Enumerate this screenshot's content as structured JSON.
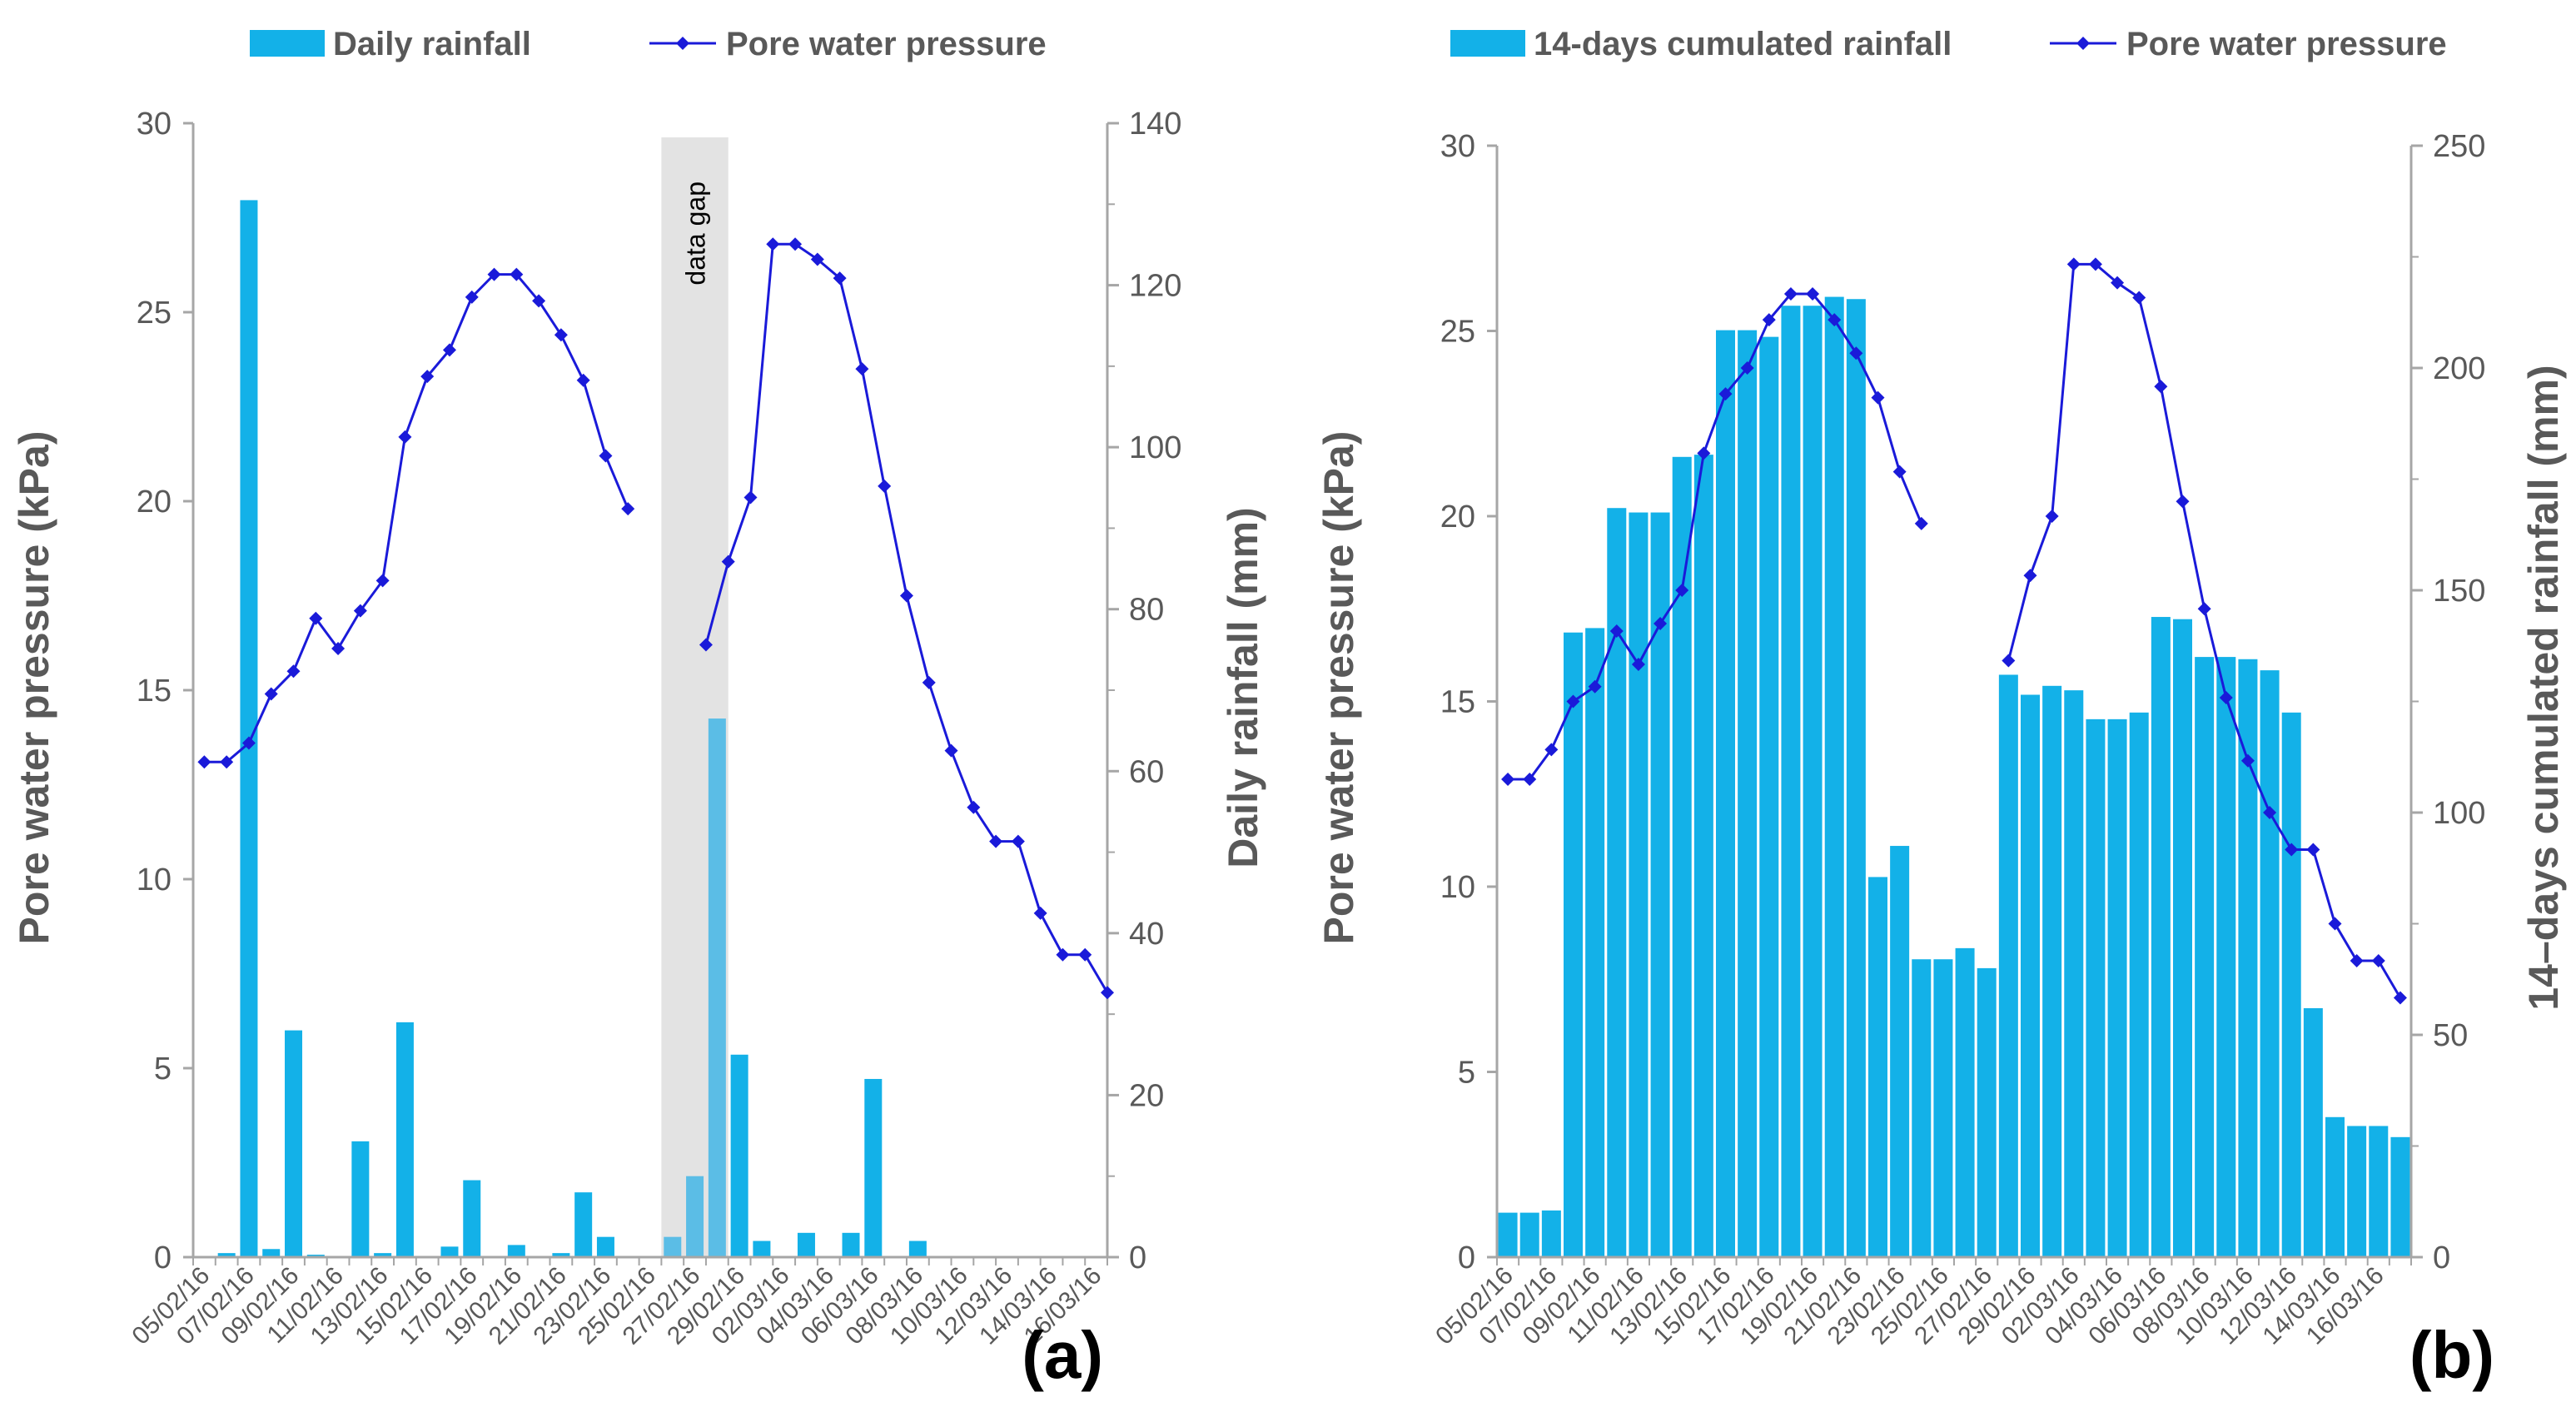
{
  "chart_data": [
    {
      "type": "bar+line",
      "panel_label": "(a)",
      "legend": {
        "bar": "Daily rainfall",
        "line": "Pore water pressure"
      },
      "ylabel_left": "Pore water pressure (kPa)",
      "ylabel_right": "Daily rainfall (mm)",
      "ylim_left": [
        0,
        30
      ],
      "ylim_right": [
        0,
        140
      ],
      "yticks_left": [
        0,
        5,
        10,
        15,
        20,
        25,
        30
      ],
      "yticks_right": [
        0,
        20,
        40,
        60,
        80,
        100,
        120,
        140
      ],
      "xticks": [
        "05/02/16",
        "07/02/16",
        "09/02/16",
        "11/02/16",
        "13/02/16",
        "15/02/16",
        "17/02/16",
        "19/02/16",
        "21/02/16",
        "23/02/16",
        "25/02/16",
        "27/02/16",
        "29/02/16",
        "02/03/16",
        "04/03/16",
        "06/03/16",
        "08/03/16",
        "10/03/16",
        "12/03/16",
        "14/03/16",
        "16/03/16"
      ],
      "gap": {
        "label": "data gap",
        "from_day": 20.5,
        "to_day": 23.5
      },
      "bars": [
        {
          "day": 1,
          "value": 0.5
        },
        {
          "day": 2,
          "value": 130.5
        },
        {
          "day": 3,
          "value": 1
        },
        {
          "day": 4,
          "value": 28
        },
        {
          "day": 5,
          "value": 0.3
        },
        {
          "day": 7,
          "value": 14.3
        },
        {
          "day": 8,
          "value": 0.5
        },
        {
          "day": 9,
          "value": 29
        },
        {
          "day": 11,
          "value": 1.3
        },
        {
          "day": 12,
          "value": 9.5
        },
        {
          "day": 14,
          "value": 1.5
        },
        {
          "day": 16,
          "value": 0.5
        },
        {
          "day": 17,
          "value": 8
        },
        {
          "day": 18,
          "value": 2.5
        },
        {
          "day": 21,
          "value": 2.5
        },
        {
          "day": 22,
          "value": 10
        },
        {
          "day": 23,
          "value": 66.5
        },
        {
          "day": 24,
          "value": 25
        },
        {
          "day": 25,
          "value": 2
        },
        {
          "day": 27,
          "value": 3
        },
        {
          "day": 29,
          "value": 3
        },
        {
          "day": 30,
          "value": 22
        },
        {
          "day": 32,
          "value": 2
        }
      ],
      "line_segments": [
        [
          {
            "day": 0,
            "y": 13.1
          },
          {
            "day": 1,
            "y": 13.1
          },
          {
            "day": 2,
            "y": 13.6
          },
          {
            "day": 3,
            "y": 14.9
          },
          {
            "day": 4,
            "y": 15.5
          },
          {
            "day": 5,
            "y": 16.9
          },
          {
            "day": 6,
            "y": 16.1
          },
          {
            "day": 7,
            "y": 17.1
          },
          {
            "day": 8,
            "y": 17.9
          },
          {
            "day": 9,
            "y": 21.7
          },
          {
            "day": 10,
            "y": 23.3
          },
          {
            "day": 11,
            "y": 24.0
          },
          {
            "day": 12,
            "y": 25.4
          },
          {
            "day": 13,
            "y": 26.0
          },
          {
            "day": 14,
            "y": 26.0
          },
          {
            "day": 15,
            "y": 25.3
          },
          {
            "day": 16,
            "y": 24.4
          },
          {
            "day": 17,
            "y": 23.2
          },
          {
            "day": 18,
            "y": 21.2
          },
          {
            "day": 19,
            "y": 19.8
          }
        ],
        [
          {
            "day": 22.5,
            "y": 16.2
          },
          {
            "day": 23.5,
            "y": 18.4
          },
          {
            "day": 24.5,
            "y": 20.1
          },
          {
            "day": 25.5,
            "y": 26.8
          },
          {
            "day": 26.5,
            "y": 26.8
          },
          {
            "day": 27.5,
            "y": 26.4
          },
          {
            "day": 28.5,
            "y": 25.9
          },
          {
            "day": 29.5,
            "y": 23.5
          },
          {
            "day": 30.5,
            "y": 20.4
          },
          {
            "day": 31.5,
            "y": 17.5
          },
          {
            "day": 32.5,
            "y": 15.2
          },
          {
            "day": 33.5,
            "y": 13.4
          },
          {
            "day": 34.5,
            "y": 11.9
          },
          {
            "day": 35.5,
            "y": 11.0
          },
          {
            "day": 36.5,
            "y": 11.0
          },
          {
            "day": 37.5,
            "y": 9.1
          },
          {
            "day": 38.5,
            "y": 8.0
          },
          {
            "day": 39.5,
            "y": 8.0
          },
          {
            "day": 40.5,
            "y": 7.0
          }
        ]
      ]
    },
    {
      "type": "bar+line",
      "panel_label": "(b)",
      "legend": {
        "bar": "14-days cumulated rainfall",
        "line": "Pore water pressure"
      },
      "ylabel_left": "Pore water pressure (kPa)",
      "ylabel_right": "14–days cumulated rainfall (mm)",
      "ylim_left": [
        0,
        30
      ],
      "ylim_right": [
        0,
        250
      ],
      "yticks_left": [
        0,
        5,
        10,
        15,
        20,
        25,
        30
      ],
      "yticks_right": [
        0,
        50,
        100,
        150,
        200,
        250
      ],
      "xticks": [
        "05/02/16",
        "07/02/16",
        "09/02/16",
        "11/02/16",
        "13/02/16",
        "15/02/16",
        "17/02/16",
        "19/02/16",
        "21/02/16",
        "23/02/16",
        "25/02/16",
        "27/02/16",
        "29/02/16",
        "02/03/16",
        "04/03/16",
        "06/03/16",
        "08/03/16",
        "10/03/16",
        "12/03/16",
        "14/03/16",
        "16/03/16"
      ],
      "bars": [
        {
          "day": 0,
          "value": 10
        },
        {
          "day": 1,
          "value": 10
        },
        {
          "day": 2,
          "value": 10.5
        },
        {
          "day": 3,
          "value": 140.5
        },
        {
          "day": 4,
          "value": 141.5
        },
        {
          "day": 5,
          "value": 168.5
        },
        {
          "day": 6,
          "value": 167.5
        },
        {
          "day": 7,
          "value": 167.5
        },
        {
          "day": 8,
          "value": 180
        },
        {
          "day": 9,
          "value": 180.5
        },
        {
          "day": 10,
          "value": 208.5
        },
        {
          "day": 11,
          "value": 208.5
        },
        {
          "day": 12,
          "value": 207
        },
        {
          "day": 13,
          "value": 214
        },
        {
          "day": 14,
          "value": 214
        },
        {
          "day": 15,
          "value": 216
        },
        {
          "day": 16,
          "value": 215.5
        },
        {
          "day": 17,
          "value": 85.5
        },
        {
          "day": 18,
          "value": 92.5
        },
        {
          "day": 19,
          "value": 67
        },
        {
          "day": 20,
          "value": 67
        },
        {
          "day": 21,
          "value": 69.5
        },
        {
          "day": 22,
          "value": 65
        },
        {
          "day": 23,
          "value": 131
        },
        {
          "day": 24,
          "value": 126.5
        },
        {
          "day": 25,
          "value": 128.5
        },
        {
          "day": 26,
          "value": 127.5
        },
        {
          "day": 27,
          "value": 121
        },
        {
          "day": 28,
          "value": 121
        },
        {
          "day": 29,
          "value": 122.5
        },
        {
          "day": 30,
          "value": 144
        },
        {
          "day": 31,
          "value": 143.5
        },
        {
          "day": 32,
          "value": 135
        },
        {
          "day": 33,
          "value": 135
        },
        {
          "day": 34,
          "value": 134.5
        },
        {
          "day": 35,
          "value": 132
        },
        {
          "day": 36,
          "value": 122.5
        },
        {
          "day": 37,
          "value": 56
        },
        {
          "day": 38,
          "value": 31.5
        },
        {
          "day": 39,
          "value": 29.5
        },
        {
          "day": 40,
          "value": 29.5
        },
        {
          "day": 41,
          "value": 27
        }
      ],
      "line_segments": [
        [
          {
            "day": 0,
            "y": 12.9
          },
          {
            "day": 1,
            "y": 12.9
          },
          {
            "day": 2,
            "y": 13.7
          },
          {
            "day": 3,
            "y": 15.0
          },
          {
            "day": 4,
            "y": 15.4
          },
          {
            "day": 5,
            "y": 16.9
          },
          {
            "day": 6,
            "y": 16.0
          },
          {
            "day": 7,
            "y": 17.1
          },
          {
            "day": 8,
            "y": 18.0
          },
          {
            "day": 9,
            "y": 21.7
          },
          {
            "day": 10,
            "y": 23.3
          },
          {
            "day": 11,
            "y": 24.0
          },
          {
            "day": 12,
            "y": 25.3
          },
          {
            "day": 13,
            "y": 26.0
          },
          {
            "day": 14,
            "y": 26.0
          },
          {
            "day": 15,
            "y": 25.3
          },
          {
            "day": 16,
            "y": 24.4
          },
          {
            "day": 17,
            "y": 23.2
          },
          {
            "day": 18,
            "y": 21.2
          },
          {
            "day": 19,
            "y": 19.8
          }
        ],
        [
          {
            "day": 23,
            "y": 16.1
          },
          {
            "day": 24,
            "y": 18.4
          },
          {
            "day": 25,
            "y": 20.0
          },
          {
            "day": 26,
            "y": 26.8
          },
          {
            "day": 27,
            "y": 26.8
          },
          {
            "day": 28,
            "y": 26.3
          },
          {
            "day": 29,
            "y": 25.9
          },
          {
            "day": 30,
            "y": 23.5
          },
          {
            "day": 31,
            "y": 20.4
          },
          {
            "day": 32,
            "y": 17.5
          },
          {
            "day": 33,
            "y": 15.1
          },
          {
            "day": 34,
            "y": 13.4
          },
          {
            "day": 35,
            "y": 12.0
          },
          {
            "day": 36,
            "y": 11.0
          },
          {
            "day": 37,
            "y": 11.0
          },
          {
            "day": 38,
            "y": 9.0
          },
          {
            "day": 39,
            "y": 8.0
          },
          {
            "day": 40,
            "y": 8.0
          },
          {
            "day": 41,
            "y": 7.0
          }
        ]
      ]
    }
  ],
  "colors": {
    "bar": "#13b1e8",
    "bar_in_gap": "#5bbde6",
    "line": "#1a1ad9",
    "gap_fill": "#e3e3e3",
    "axis": "#a6a6a6",
    "text": "#595959"
  }
}
